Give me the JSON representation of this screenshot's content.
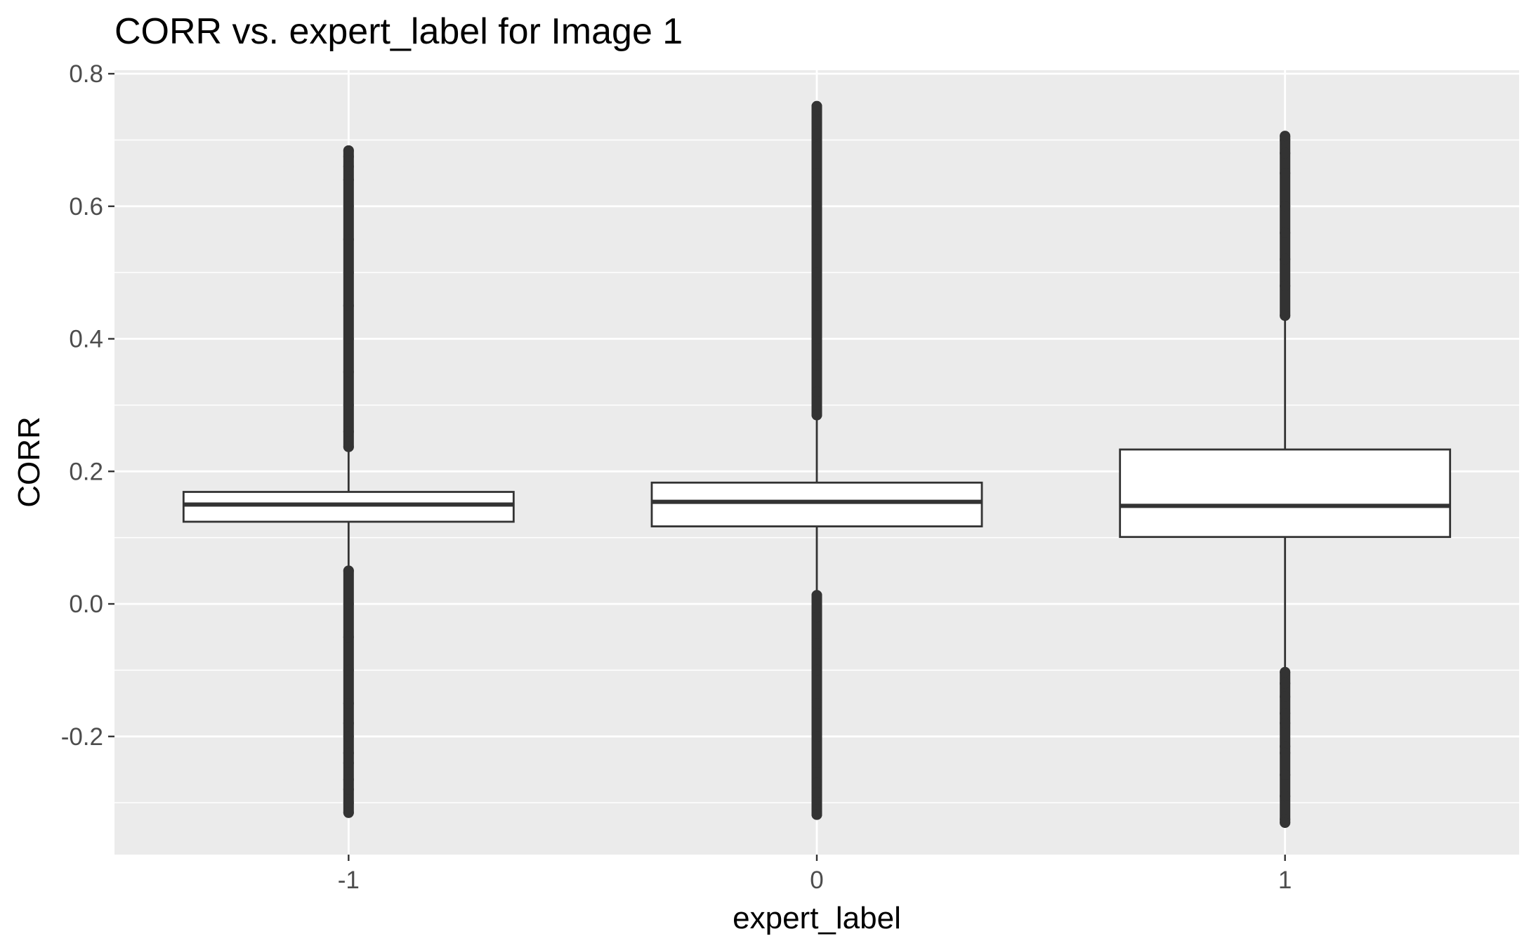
{
  "chart_data": {
    "type": "boxplot",
    "title": "CORR vs. expert_label for Image 1",
    "xlabel": "expert_label",
    "ylabel": "CORR",
    "categories": [
      "-1",
      "0",
      "1"
    ],
    "ylim": [
      -0.38,
      0.8
    ],
    "yticks": [
      -0.2,
      0.0,
      0.2,
      0.4,
      0.6,
      0.8
    ],
    "ytick_labels": [
      "-0.2",
      "0.0",
      "0.2",
      "0.4",
      "0.6",
      "0.8"
    ],
    "grid": true,
    "legend": "none",
    "colors": {
      "panel_background": "#ebebeb",
      "grid": "#ffffff",
      "box_fill": "#ffffff",
      "box_stroke": "#333333",
      "outlier": "#333333",
      "tick_text": "#4d4d4d"
    },
    "boxes": [
      {
        "category": "-1",
        "q1": 0.124,
        "median": 0.15,
        "q3": 0.169,
        "whisker_low": 0.057,
        "whisker_high": 0.235,
        "outliers_high": [
          0.237,
          0.26,
          0.3,
          0.35,
          0.4,
          0.45,
          0.5,
          0.55,
          0.6,
          0.64,
          0.66,
          0.675,
          0.684
        ],
        "outliers_low": [
          0.05,
          0.0,
          -0.05,
          -0.1,
          -0.15,
          -0.18,
          -0.2,
          -0.225,
          -0.24,
          -0.265,
          -0.28,
          -0.3,
          -0.315
        ]
      },
      {
        "category": "0",
        "q1": 0.117,
        "median": 0.154,
        "q3": 0.183,
        "whisker_low": 0.016,
        "whisker_high": 0.282,
        "outliers_high": [
          0.285,
          0.32,
          0.36,
          0.4,
          0.45,
          0.5,
          0.55,
          0.6,
          0.65,
          0.69,
          0.709,
          0.728,
          0.745,
          0.751
        ],
        "outliers_low": [
          0.013,
          -0.02,
          -0.06,
          -0.1,
          -0.15,
          -0.2,
          -0.24,
          -0.27,
          -0.285,
          -0.31,
          -0.318
        ]
      },
      {
        "category": "1",
        "q1": 0.101,
        "median": 0.148,
        "q3": 0.233,
        "whisker_low": -0.1,
        "whisker_high": 0.432,
        "outliers_high": [
          0.435,
          0.48,
          0.52,
          0.56,
          0.6,
          0.65,
          0.68,
          0.7,
          0.706
        ],
        "outliers_low": [
          -0.103,
          -0.12,
          -0.14,
          -0.165,
          -0.18,
          -0.215,
          -0.225,
          -0.258,
          -0.29,
          -0.325,
          -0.33
        ]
      }
    ]
  }
}
